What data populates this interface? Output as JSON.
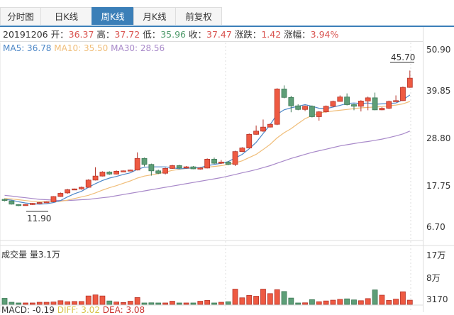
{
  "tabs": [
    {
      "label": "分时图",
      "active": false
    },
    {
      "label": "日K线",
      "active": false
    },
    {
      "label": "周K线",
      "active": true
    },
    {
      "label": "月K线",
      "active": false
    },
    {
      "label": "前复权",
      "active": false
    }
  ],
  "info": {
    "date": "20191206",
    "open_label": "开：",
    "open": "36.37",
    "high_label": "高：",
    "high": "37.72",
    "low_label": "低：",
    "low": "35.96",
    "close_label": "收：",
    "close": "37.47",
    "change_label": "涨跌：",
    "change": "1.42",
    "pct_label": "涨幅：",
    "pct": "3.94%"
  },
  "ma_legend": {
    "ma5": "MA5: 36.78",
    "ma10": "MA10: 35.50",
    "ma30": "MA30: 28.56"
  },
  "colors": {
    "up": "#ee5a42",
    "up_border": "#b5342a",
    "down": "#5d9e77",
    "down_border": "#3f7a57",
    "ma5": "#4d87c7",
    "ma10": "#f0be7a",
    "ma30": "#a889c9",
    "accent": "#3b7fb8"
  },
  "price_axis": {
    "labels": [
      "50.90",
      "39.85",
      "28.80",
      "17.75",
      "6.70"
    ]
  },
  "volume": {
    "title": "成交量",
    "current": "量3.1万",
    "axis_labels": [
      "17万",
      "8万",
      "3170"
    ]
  },
  "macd": {
    "label": "MACD: -0.19",
    "diff": "DIFF: 3.02",
    "dea": "DEA: 3.08"
  },
  "annotations": {
    "max": "45.70",
    "min": "11.90"
  },
  "chart_data": {
    "type": "candlestick",
    "title": "周K线",
    "ylim": [
      6.7,
      50.9
    ],
    "y_ticks": [
      50.9,
      39.85,
      28.8,
      17.75,
      6.7
    ],
    "max_label": 45.7,
    "min_label": 11.9,
    "candles": [
      {
        "o": 13.6,
        "c": 13.3,
        "h": 13.8,
        "l": 13.1,
        "v": 2.3
      },
      {
        "o": 13.2,
        "c": 12.4,
        "h": 13.3,
        "l": 12.3,
        "v": 0.8
      },
      {
        "o": 12.3,
        "c": 12.1,
        "h": 12.4,
        "l": 11.9,
        "v": 0.5
      },
      {
        "o": 12.1,
        "c": 12.3,
        "h": 12.4,
        "l": 12.0,
        "v": 0.15
      },
      {
        "o": 12.3,
        "c": 12.6,
        "h": 12.7,
        "l": 12.2,
        "v": 0.15
      },
      {
        "o": 12.6,
        "c": 12.8,
        "h": 12.9,
        "l": 12.5,
        "v": 0.8
      },
      {
        "o": 12.8,
        "c": 13.0,
        "h": 13.1,
        "l": 12.7,
        "v": 0.8
      },
      {
        "o": 13.0,
        "c": 14.3,
        "h": 14.4,
        "l": 12.9,
        "v": 0.9
      },
      {
        "o": 14.3,
        "c": 15.1,
        "h": 15.3,
        "l": 14.2,
        "v": 1.4
      },
      {
        "o": 15.2,
        "c": 16.0,
        "h": 16.2,
        "l": 15.0,
        "v": 1.0
      },
      {
        "o": 16.0,
        "c": 16.2,
        "h": 16.3,
        "l": 15.9,
        "v": 1.1
      },
      {
        "o": 16.2,
        "c": 16.6,
        "h": 16.8,
        "l": 16.0,
        "v": 1.1
      },
      {
        "o": 16.6,
        "c": 18.4,
        "h": 18.6,
        "l": 16.5,
        "v": 3.2
      },
      {
        "o": 18.4,
        "c": 19.4,
        "h": 21.6,
        "l": 18.3,
        "v": 3.6
      },
      {
        "o": 19.4,
        "c": 20.4,
        "h": 20.6,
        "l": 19.3,
        "v": 3.2
      },
      {
        "o": 20.4,
        "c": 19.9,
        "h": 20.6,
        "l": 19.7,
        "v": 1.3
      },
      {
        "o": 19.9,
        "c": 20.6,
        "h": 20.8,
        "l": 19.8,
        "v": 0.9
      },
      {
        "o": 20.6,
        "c": 20.7,
        "h": 20.8,
        "l": 20.5,
        "v": 0.7
      },
      {
        "o": 20.7,
        "c": 20.9,
        "h": 21.0,
        "l": 20.6,
        "v": 1.2
      },
      {
        "o": 20.9,
        "c": 23.8,
        "h": 25.3,
        "l": 20.8,
        "v": 2.6
      },
      {
        "o": 23.8,
        "c": 22.3,
        "h": 24.0,
        "l": 21.8,
        "v": 0.3
      },
      {
        "o": 22.3,
        "c": 20.7,
        "h": 22.5,
        "l": 19.5,
        "v": 0.6
      },
      {
        "o": 20.7,
        "c": 20.1,
        "h": 21.0,
        "l": 19.9,
        "v": 0.3
      },
      {
        "o": 20.1,
        "c": 21.3,
        "h": 21.5,
        "l": 19.8,
        "v": 0.3
      },
      {
        "o": 21.3,
        "c": 22.0,
        "h": 22.2,
        "l": 21.2,
        "v": 1.2
      },
      {
        "o": 22.0,
        "c": 21.4,
        "h": 22.2,
        "l": 21.2,
        "v": 0.2
      },
      {
        "o": 21.4,
        "c": 21.7,
        "h": 21.9,
        "l": 21.3,
        "v": 0.3
      },
      {
        "o": 21.7,
        "c": 21.2,
        "h": 21.9,
        "l": 21.1,
        "v": 0.2
      },
      {
        "o": 21.2,
        "c": 21.4,
        "h": 21.6,
        "l": 21.0,
        "v": 1.2
      },
      {
        "o": 21.4,
        "c": 23.6,
        "h": 23.8,
        "l": 21.3,
        "v": 1.5
      },
      {
        "o": 23.6,
        "c": 22.6,
        "h": 24.0,
        "l": 22.4,
        "v": 0.5
      },
      {
        "o": 22.6,
        "c": 22.9,
        "h": 23.4,
        "l": 22.4,
        "v": 0.8
      },
      {
        "o": 22.9,
        "c": 22.3,
        "h": 23.1,
        "l": 22.1,
        "v": 1.0
      },
      {
        "o": 22.3,
        "c": 25.5,
        "h": 25.7,
        "l": 21.9,
        "v": 5.8
      },
      {
        "o": 25.5,
        "c": 26.4,
        "h": 26.6,
        "l": 25.4,
        "v": 2.5
      },
      {
        "o": 26.4,
        "c": 29.8,
        "h": 30.0,
        "l": 26.3,
        "v": 3.4
      },
      {
        "o": 29.8,
        "c": 30.6,
        "h": 32.0,
        "l": 29.7,
        "v": 3.1
      },
      {
        "o": 30.6,
        "c": 31.6,
        "h": 33.5,
        "l": 30.4,
        "v": 5.8
      },
      {
        "o": 31.6,
        "c": 32.3,
        "h": 32.5,
        "l": 31.5,
        "v": 4.1
      },
      {
        "o": 32.3,
        "c": 41.1,
        "h": 41.3,
        "l": 32.1,
        "v": 5.6
      },
      {
        "o": 41.1,
        "c": 39.0,
        "h": 42.0,
        "l": 38.8,
        "v": 4.9
      },
      {
        "o": 39.0,
        "c": 36.9,
        "h": 39.4,
        "l": 35.3,
        "v": 2.4
      },
      {
        "o": 36.9,
        "c": 36.0,
        "h": 37.3,
        "l": 35.8,
        "v": 0.4
      },
      {
        "o": 36.0,
        "c": 36.8,
        "h": 37.0,
        "l": 35.6,
        "v": 0.6
      },
      {
        "o": 36.8,
        "c": 34.2,
        "h": 37.0,
        "l": 34.0,
        "v": 1.8
      },
      {
        "o": 34.2,
        "c": 35.4,
        "h": 35.6,
        "l": 33.2,
        "v": 1.0
      },
      {
        "o": 35.4,
        "c": 36.8,
        "h": 37.0,
        "l": 35.2,
        "v": 1.3
      },
      {
        "o": 36.8,
        "c": 38.0,
        "h": 38.2,
        "l": 36.6,
        "v": 1.6
      },
      {
        "o": 38.0,
        "c": 39.1,
        "h": 39.5,
        "l": 37.9,
        "v": 1.9
      },
      {
        "o": 39.1,
        "c": 37.2,
        "h": 40.0,
        "l": 37.0,
        "v": 2.1
      },
      {
        "o": 37.2,
        "c": 36.8,
        "h": 37.4,
        "l": 35.8,
        "v": 1.7
      },
      {
        "o": 36.8,
        "c": 38.1,
        "h": 38.3,
        "l": 35.5,
        "v": 1.4
      },
      {
        "o": 38.1,
        "c": 38.9,
        "h": 39.2,
        "l": 35.8,
        "v": 2.2
      },
      {
        "o": 38.9,
        "c": 35.9,
        "h": 40.2,
        "l": 35.8,
        "v": 5.5
      },
      {
        "o": 35.9,
        "c": 36.3,
        "h": 36.6,
        "l": 35.8,
        "v": 3.5
      },
      {
        "o": 36.3,
        "c": 38.0,
        "h": 38.2,
        "l": 36.1,
        "v": 1.5
      },
      {
        "o": 38.0,
        "c": 38.2,
        "h": 39.5,
        "l": 37.9,
        "v": 2.0
      },
      {
        "o": 38.2,
        "c": 41.5,
        "h": 41.7,
        "l": 38.1,
        "v": 4.8
      },
      {
        "o": 41.5,
        "c": 43.8,
        "h": 45.7,
        "l": 41.4,
        "v": 1.6
      }
    ],
    "ma5": [
      13.6,
      13.4,
      13.0,
      12.7,
      12.5,
      12.4,
      12.5,
      12.8,
      13.3,
      14.2,
      15.0,
      15.6,
      16.6,
      17.5,
      18.3,
      18.9,
      19.3,
      19.8,
      20.2,
      21.1,
      21.6,
      21.7,
      21.7,
      21.7,
      21.5,
      21.2,
      21.3,
      21.5,
      21.5,
      22.0,
      22.3,
      22.6,
      23.0,
      23.9,
      24.8,
      26.2,
      27.8,
      30.0,
      32.2,
      34.8,
      35.9,
      36.4,
      36.8,
      37.2,
      36.8,
      36.3,
      36.2,
      36.6,
      37.0,
      37.5,
      37.6,
      37.5,
      37.6,
      37.3,
      37.4,
      37.5,
      37.6,
      38.4,
      39.6
    ],
    "ma10": [
      13.8,
      13.7,
      13.5,
      13.3,
      13.1,
      13.0,
      13.0,
      13.0,
      13.1,
      13.4,
      13.8,
      14.2,
      14.6,
      15.2,
      15.9,
      16.5,
      17.0,
      17.6,
      18.2,
      18.9,
      19.4,
      19.7,
      20.0,
      20.4,
      20.8,
      21.1,
      21.3,
      21.4,
      21.5,
      21.6,
      21.8,
      22.0,
      22.3,
      22.7,
      23.2,
      24.0,
      24.8,
      26.0,
      27.3,
      28.9,
      30.2,
      31.2,
      32.5,
      33.7,
      34.5,
      35.1,
      35.4,
      35.6,
      35.8,
      36.0,
      36.2,
      36.4,
      36.5,
      36.6,
      36.7,
      36.9,
      37.1,
      37.4,
      38.0
    ],
    "ma30": [
      14.6,
      14.4,
      14.2,
      14.0,
      13.8,
      13.6,
      13.5,
      13.4,
      13.3,
      13.3,
      13.4,
      13.5,
      13.6,
      13.8,
      14.0,
      14.2,
      14.5,
      14.8,
      15.1,
      15.4,
      15.7,
      16.0,
      16.3,
      16.6,
      16.9,
      17.2,
      17.5,
      17.8,
      18.1,
      18.4,
      18.7,
      19.0,
      19.4,
      19.8,
      20.2,
      20.6,
      21.0,
      21.5,
      22.0,
      22.6,
      23.2,
      23.8,
      24.3,
      24.8,
      25.3,
      25.7,
      26.1,
      26.5,
      26.9,
      27.2,
      27.5,
      27.8,
      28.0,
      28.3,
      28.6,
      29.0,
      29.4,
      29.9,
      30.6
    ],
    "volume_unit": "万"
  }
}
